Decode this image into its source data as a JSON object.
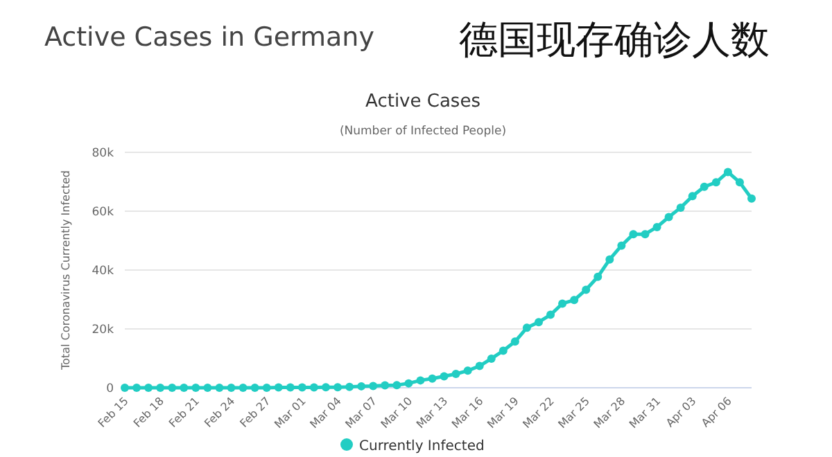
{
  "chart_data": {
    "type": "line",
    "title": "Active Cases",
    "subtitle": "(Number of Infected People)",
    "ylabel": "Total Coronavirus Currently Infected",
    "annotations": [
      "Active Cases in Germany",
      "德国现存确诊人数"
    ],
    "x": [
      "--02-15",
      "--02-16",
      "--02-17",
      "--02-18",
      "--02-19",
      "--02-20",
      "--02-21",
      "--02-22",
      "--02-23",
      "--02-24",
      "--02-25",
      "--02-26",
      "--02-27",
      "--02-28",
      "--02-29",
      "--03-01",
      "--03-02",
      "--03-03",
      "--03-04",
      "--03-05",
      "--03-06",
      "--03-07",
      "--03-08",
      "--03-09",
      "--03-10",
      "--03-11",
      "--03-12",
      "--03-13",
      "--03-14",
      "--03-15",
      "--03-16",
      "--03-17",
      "--03-18",
      "--03-19",
      "--03-20",
      "--03-21",
      "--03-22",
      "--03-23",
      "--03-24",
      "--03-25",
      "--03-26",
      "--03-27",
      "--03-28",
      "--03-29",
      "--03-30",
      "--03-31",
      "--04-01",
      "--04-02",
      "--04-03",
      "--04-04",
      "--04-05",
      "--04-06",
      "--04-07",
      "--04-08"
    ],
    "series": [
      {
        "name": "Currently Infected",
        "color": "#22cdc3",
        "values": [
          0,
          0,
          0,
          0,
          0,
          0,
          0,
          0,
          0,
          0,
          0,
          0,
          0,
          100,
          100,
          100,
          100,
          200,
          200,
          300,
          500,
          600,
          800,
          900,
          1500,
          2500,
          3100,
          3900,
          4700,
          5800,
          7400,
          9900,
          12600,
          15700,
          20400,
          22300,
          24800,
          28600,
          29800,
          33300,
          37700,
          43600,
          48300,
          52200,
          52200,
          54600,
          58000,
          61200,
          65100,
          68300,
          69800,
          73300,
          69800,
          64300
        ]
      }
    ],
    "xlim": [
      "--02-15",
      "--04-08"
    ],
    "xticks": [
      {
        "value": "--02-15",
        "label": "Feb 15"
      },
      {
        "value": "--02-18",
        "label": "Feb 18"
      },
      {
        "value": "--02-21",
        "label": "Feb 21"
      },
      {
        "value": "--02-24",
        "label": "Feb 24"
      },
      {
        "value": "--02-27",
        "label": "Feb 27"
      },
      {
        "value": "--03-01",
        "label": "Mar 01"
      },
      {
        "value": "--03-04",
        "label": "Mar 04"
      },
      {
        "value": "--03-07",
        "label": "Mar 07"
      },
      {
        "value": "--03-10",
        "label": "Mar 10"
      },
      {
        "value": "--03-13",
        "label": "Mar 13"
      },
      {
        "value": "--03-16",
        "label": "Mar 16"
      },
      {
        "value": "--03-19",
        "label": "Mar 19"
      },
      {
        "value": "--03-22",
        "label": "Mar 22"
      },
      {
        "value": "--03-25",
        "label": "Mar 25"
      },
      {
        "value": "--03-28",
        "label": "Mar 28"
      },
      {
        "value": "--03-31",
        "label": "Mar 31"
      },
      {
        "value": "--04-03",
        "label": "Apr 03"
      },
      {
        "value": "--04-06",
        "label": "Apr 06"
      }
    ],
    "ylim": [
      0,
      80000
    ],
    "yticks": [
      {
        "value": 0,
        "label": "0"
      },
      {
        "value": 20000,
        "label": "20k"
      },
      {
        "value": 40000,
        "label": "40k"
      },
      {
        "value": 60000,
        "label": "60k"
      },
      {
        "value": 80000,
        "label": "80k"
      }
    ],
    "grid": "y",
    "legend": "bottom",
    "marker": "circle",
    "line_style": "solid"
  }
}
